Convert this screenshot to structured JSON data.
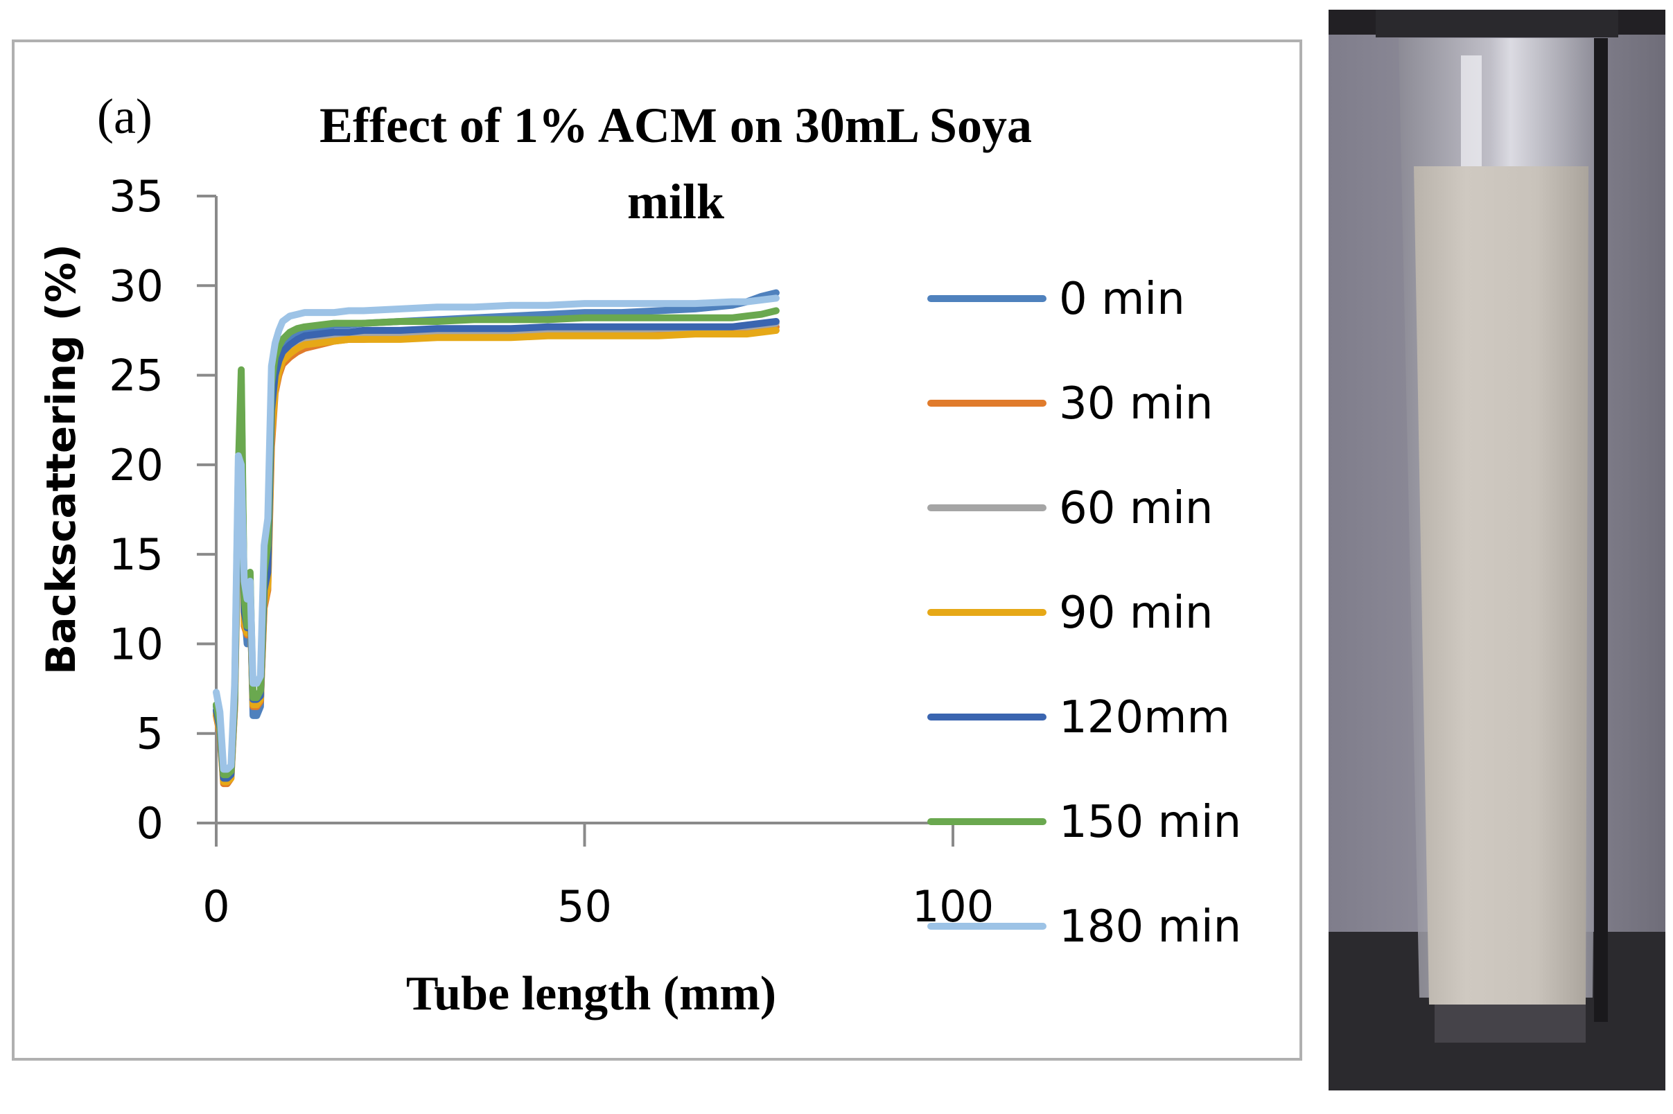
{
  "panel_label": "(a)",
  "chart_data": {
    "type": "line",
    "title_line1": "Effect of 1% ACM on 30mL Soya",
    "title_line2": "milk",
    "xlabel": "Tube length (mm)",
    "ylabel": "Backscattering (%)",
    "xlim": [
      0,
      100
    ],
    "ylim": [
      0,
      35
    ],
    "xticks": [
      0,
      50,
      100
    ],
    "yticks": [
      0,
      5,
      10,
      15,
      20,
      25,
      30,
      35
    ],
    "grid": false,
    "legend_position": "right",
    "profile_x": [
      0,
      0.5,
      1,
      1.5,
      2,
      2.5,
      3,
      3.4,
      3.8,
      4.2,
      4.6,
      5,
      5.5,
      6,
      6.5,
      7,
      7.5,
      8,
      8.5,
      9,
      10,
      11,
      12,
      14,
      16,
      18,
      20,
      25,
      30,
      35,
      40,
      45,
      50,
      55,
      60,
      65,
      70,
      72,
      74,
      76
    ],
    "series": [
      {
        "name": "0 min",
        "color": "#4f81bd",
        "values": [
          6.5,
          5.5,
          2.6,
          2.6,
          2.8,
          7.0,
          19.5,
          24.5,
          12.0,
          10.0,
          13.0,
          6.0,
          6.0,
          6.5,
          13.0,
          14.0,
          24.0,
          25.5,
          26.0,
          26.5,
          27.0,
          27.3,
          27.5,
          27.6,
          27.8,
          27.8,
          27.9,
          28.0,
          28.1,
          28.2,
          28.3,
          28.4,
          28.5,
          28.5,
          28.6,
          28.7,
          28.9,
          29.1,
          29.4,
          29.6
        ]
      },
      {
        "name": "30 min",
        "color": "#e07b2c",
        "values": [
          6.0,
          5.0,
          2.2,
          2.2,
          2.5,
          6.5,
          18.0,
          24.0,
          11.0,
          10.5,
          12.5,
          6.5,
          6.5,
          6.8,
          12.0,
          13.0,
          21.0,
          24.0,
          25.0,
          25.6,
          26.0,
          26.3,
          26.5,
          26.7,
          26.9,
          27.0,
          27.0,
          27.1,
          27.2,
          27.2,
          27.3,
          27.3,
          27.4,
          27.4,
          27.4,
          27.5,
          27.5,
          27.5,
          27.6,
          27.7
        ]
      },
      {
        "name": "60 min",
        "color": "#a5a5a5",
        "values": [
          6.2,
          5.2,
          2.4,
          2.4,
          2.6,
          6.8,
          18.5,
          24.2,
          11.5,
          10.8,
          12.8,
          6.8,
          6.8,
          7.0,
          12.5,
          13.5,
          22.0,
          24.5,
          25.5,
          26.0,
          26.4,
          26.7,
          26.9,
          27.0,
          27.1,
          27.2,
          27.2,
          27.3,
          27.3,
          27.4,
          27.4,
          27.5,
          27.5,
          27.5,
          27.6,
          27.6,
          27.7,
          27.7,
          27.8,
          27.9
        ]
      },
      {
        "name": "90 min",
        "color": "#e6a817",
        "values": [
          6.1,
          5.1,
          2.3,
          2.3,
          2.5,
          6.6,
          18.2,
          24.0,
          11.2,
          10.6,
          12.6,
          6.6,
          6.6,
          6.9,
          12.2,
          13.2,
          21.5,
          24.2,
          25.2,
          25.8,
          26.2,
          26.5,
          26.7,
          26.8,
          26.9,
          27.0,
          27.0,
          27.0,
          27.1,
          27.1,
          27.1,
          27.2,
          27.2,
          27.2,
          27.2,
          27.3,
          27.3,
          27.3,
          27.4,
          27.5
        ]
      },
      {
        "name": "120mm",
        "color": "#3a65b0",
        "values": [
          6.3,
          5.3,
          2.5,
          2.5,
          2.7,
          6.9,
          18.8,
          24.3,
          11.8,
          10.9,
          12.9,
          6.9,
          6.9,
          7.1,
          13.0,
          14.0,
          23.0,
          25.0,
          25.8,
          26.3,
          26.7,
          27.0,
          27.2,
          27.3,
          27.4,
          27.4,
          27.5,
          27.5,
          27.6,
          27.6,
          27.6,
          27.7,
          27.7,
          27.7,
          27.7,
          27.7,
          27.7,
          27.8,
          27.9,
          28.0
        ]
      },
      {
        "name": "150 min",
        "color": "#6aa84f",
        "values": [
          6.6,
          5.6,
          2.7,
          2.7,
          2.9,
          7.2,
          19.8,
          25.3,
          12.5,
          11.0,
          14.0,
          7.0,
          7.0,
          7.4,
          14.0,
          15.5,
          24.5,
          26.0,
          26.6,
          27.0,
          27.4,
          27.6,
          27.7,
          27.8,
          27.9,
          27.9,
          27.9,
          28.0,
          28.0,
          28.1,
          28.1,
          28.1,
          28.2,
          28.2,
          28.2,
          28.2,
          28.2,
          28.3,
          28.4,
          28.6
        ]
      },
      {
        "name": "180 min",
        "color": "#9dc3e6",
        "values": [
          7.3,
          6.2,
          3.0,
          3.0,
          3.2,
          7.8,
          20.5,
          20.0,
          13.5,
          12.5,
          13.5,
          7.8,
          7.8,
          8.2,
          15.5,
          17.0,
          25.5,
          26.8,
          27.5,
          28.0,
          28.3,
          28.4,
          28.5,
          28.5,
          28.5,
          28.6,
          28.6,
          28.7,
          28.8,
          28.8,
          28.9,
          28.9,
          29.0,
          29.0,
          29.0,
          29.0,
          29.1,
          29.1,
          29.2,
          29.3
        ]
      }
    ]
  },
  "photo": {
    "description_icon": "sample-tube-photo-icon"
  }
}
